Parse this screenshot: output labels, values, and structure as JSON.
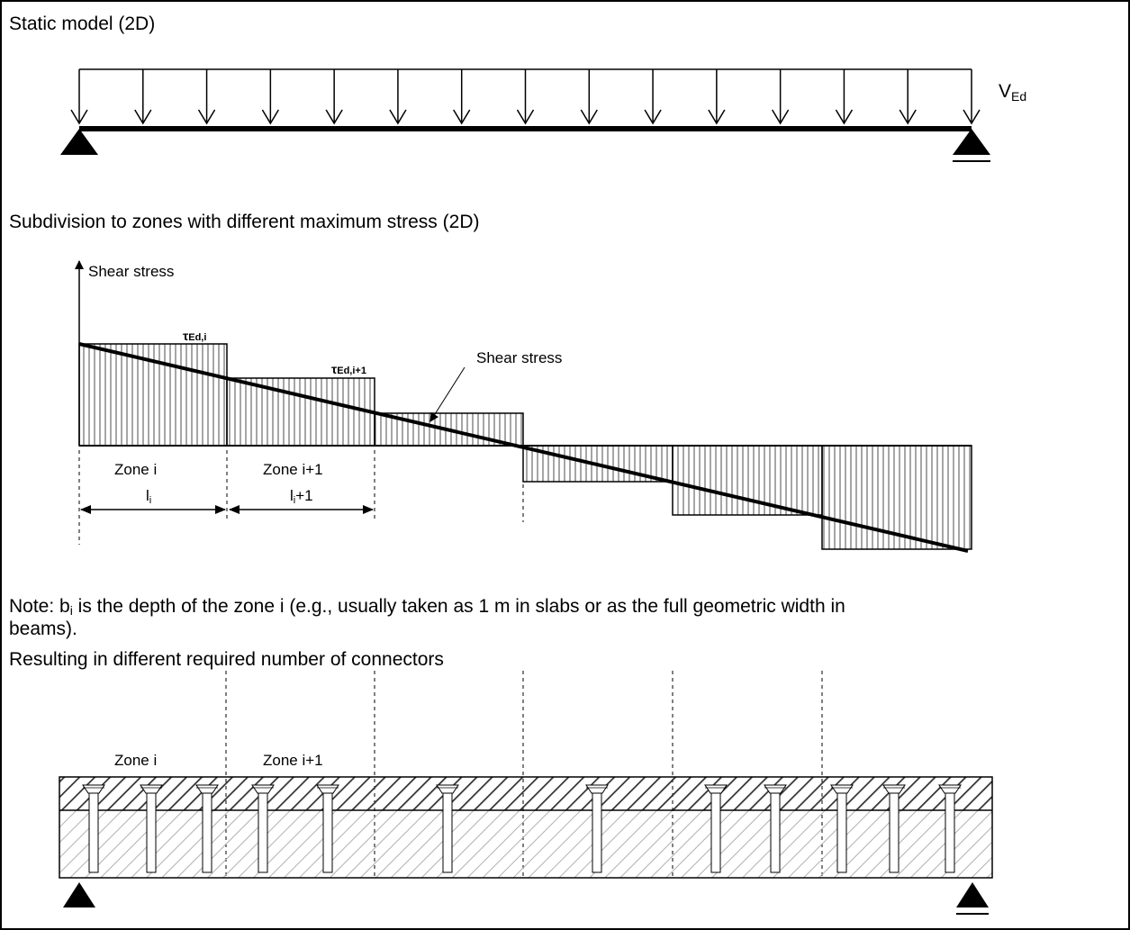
{
  "static_model": {
    "title": "Static model (2D)",
    "load_label": "V",
    "load_label_sub": "Ed"
  },
  "subdivision": {
    "title": "Subdivision to zones with different maximum stress (2D)",
    "axis_label": "Shear stress",
    "tau_i": "τ",
    "tau_i_sub": "Ed,i",
    "tau_i1": "τ",
    "tau_i1_sub": "Ed,i+1",
    "curve_label": "Shear stress",
    "zone_i": "Zone i",
    "zone_i1": "Zone i+1",
    "len_i": "l",
    "len_i_sub": "i",
    "len_i1": "l",
    "len_i1_sub": "i",
    "len_i1_suffix": "+1"
  },
  "note": {
    "line1_pre": "Note: b",
    "line1_sub": "i",
    "line1_post": " is the depth of the zone i (e.g., usually taken as 1 m in slabs or as the full geometric width in",
    "line2": "beams).",
    "line3": "Resulting in different required number of connectors"
  },
  "connectors": {
    "zone_i": "Zone i",
    "zone_i1": "Zone i+1"
  },
  "colors": {
    "line": "#000000",
    "hatch": "#9a9a9a"
  }
}
